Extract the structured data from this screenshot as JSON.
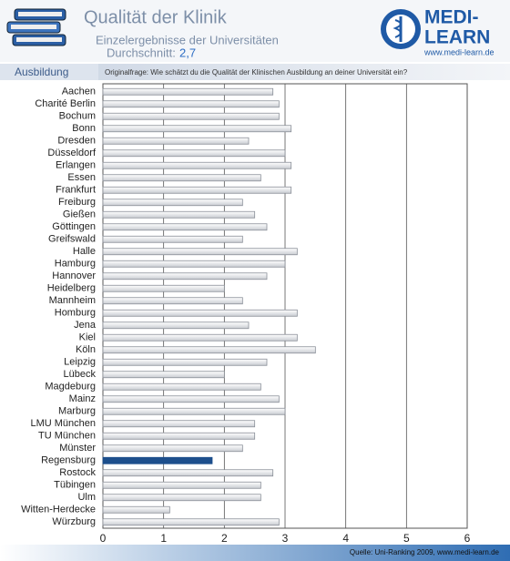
{
  "chart_data": {
    "type": "bar",
    "orientation": "horizontal",
    "title": "Qualität der Klinik",
    "subtitle": "Einzelergebnisse der Universitäten",
    "average_label": "Durchschnitt:",
    "average_value": "2,7",
    "logo_line1": "MEDI-",
    "logo_line2": "LEARN",
    "logo_url": "www.medi-learn.de",
    "section": "Ausbildung",
    "question": "Originalfrage: Wie schätzt du die Qualität der Klinischen Ausbildung an deiner Universität ein?",
    "source": "Quelle: Uni-Ranking 2009, www.medi-learn.de",
    "categories": [
      "Aachen",
      "Charité Berlin",
      "Bochum",
      "Bonn",
      "Dresden",
      "Düsseldorf",
      "Erlangen",
      "Essen",
      "Frankfurt",
      "Freiburg",
      "Gießen",
      "Göttingen",
      "Greifswald",
      "Halle",
      "Hamburg",
      "Hannover",
      "Heidelberg",
      "Mannheim",
      "Homburg",
      "Jena",
      "Kiel",
      "Köln",
      "Leipzig",
      "Lübeck",
      "Magdeburg",
      "Mainz",
      "Marburg",
      "LMU München",
      "TU München",
      "Münster",
      "Regensburg",
      "Rostock",
      "Tübingen",
      "Ulm",
      "Witten-Herdecke",
      "Würzburg"
    ],
    "values": [
      2.8,
      2.9,
      2.9,
      3.1,
      2.4,
      3.0,
      3.1,
      2.6,
      3.1,
      2.3,
      2.5,
      2.7,
      2.3,
      3.2,
      3.0,
      2.7,
      2.0,
      2.3,
      3.2,
      2.4,
      3.2,
      3.5,
      2.7,
      2.0,
      2.6,
      2.9,
      3.0,
      2.5,
      2.5,
      2.3,
      1.8,
      2.8,
      2.6,
      2.6,
      1.1,
      2.9
    ],
    "color": "#e4e6ea",
    "highlight_color": "#1d4f8c",
    "highlight_index": 30,
    "xlim": [
      0,
      6
    ],
    "xticks": [
      0,
      1,
      2,
      3,
      4,
      5,
      6
    ],
    "grid": true
  }
}
